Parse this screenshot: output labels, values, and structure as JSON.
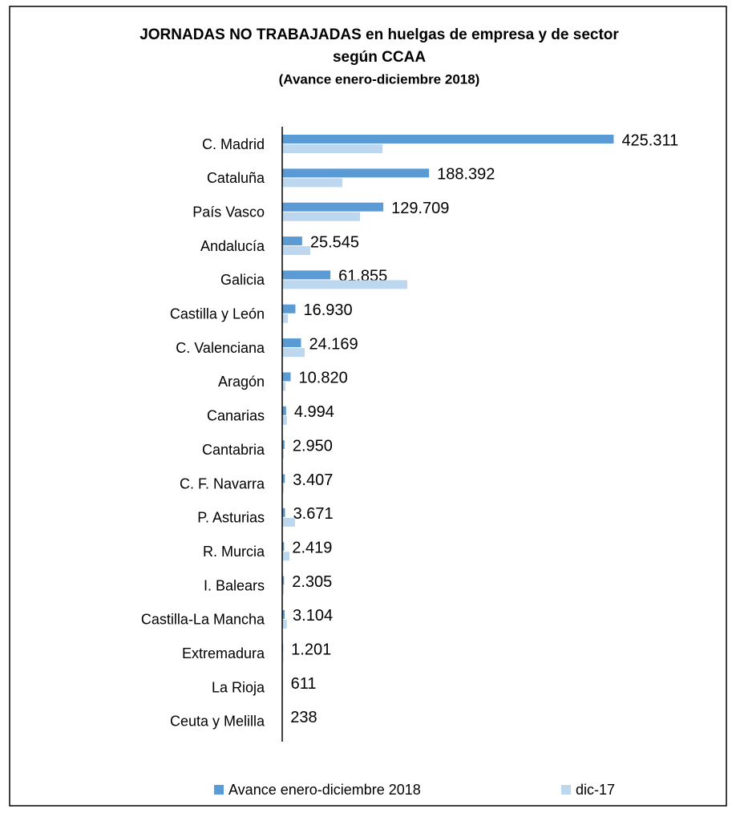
{
  "chart_data": {
    "type": "hbar",
    "title": [
      "JORNADAS  NO TRABAJADAS  en huelgas de empresa y de sector",
      "según CCAA"
    ],
    "subtitle": "(Avance enero-diciembre 2018)",
    "categories": [
      "C. Madrid",
      "Cataluña",
      "País Vasco",
      "Andalucía",
      "Galicia",
      "Castilla y León",
      "C. Valenciana",
      "Aragón",
      "Canarias",
      "Cantabria",
      "C. F. Navarra",
      "P. Asturias",
      "R. Murcia",
      "I. Balears",
      "Castilla-La Mancha",
      "Extremadura",
      "La Rioja",
      "Ceuta y Melilla"
    ],
    "series": [
      {
        "name": "Avance enero-diciembre  2018",
        "color": "#5b9bd5",
        "values": [
          425311,
          188392,
          129709,
          25545,
          61855,
          16930,
          24169,
          10820,
          4994,
          2950,
          3407,
          3671,
          2419,
          2305,
          3104,
          1201,
          611,
          238
        ],
        "value_labels": [
          "425.311",
          "188.392",
          "129.709",
          "25.545",
          "61.855",
          "16.930",
          "24.169",
          "10.820",
          "4.994",
          "2.950",
          "3.407",
          "3.671",
          "2.419",
          "2.305",
          "3.104",
          "1.201",
          "611",
          "238"
        ]
      },
      {
        "name": "dic-17",
        "color": "#bdd7ee",
        "values": [
          128700,
          77200,
          99800,
          36000,
          160500,
          7200,
          28800,
          4100,
          6000,
          2000,
          2000,
          16500,
          9300,
          2000,
          6000,
          1500,
          800,
          300
        ]
      }
    ],
    "xlim": [
      0,
      430000
    ],
    "legend": "bottom"
  }
}
